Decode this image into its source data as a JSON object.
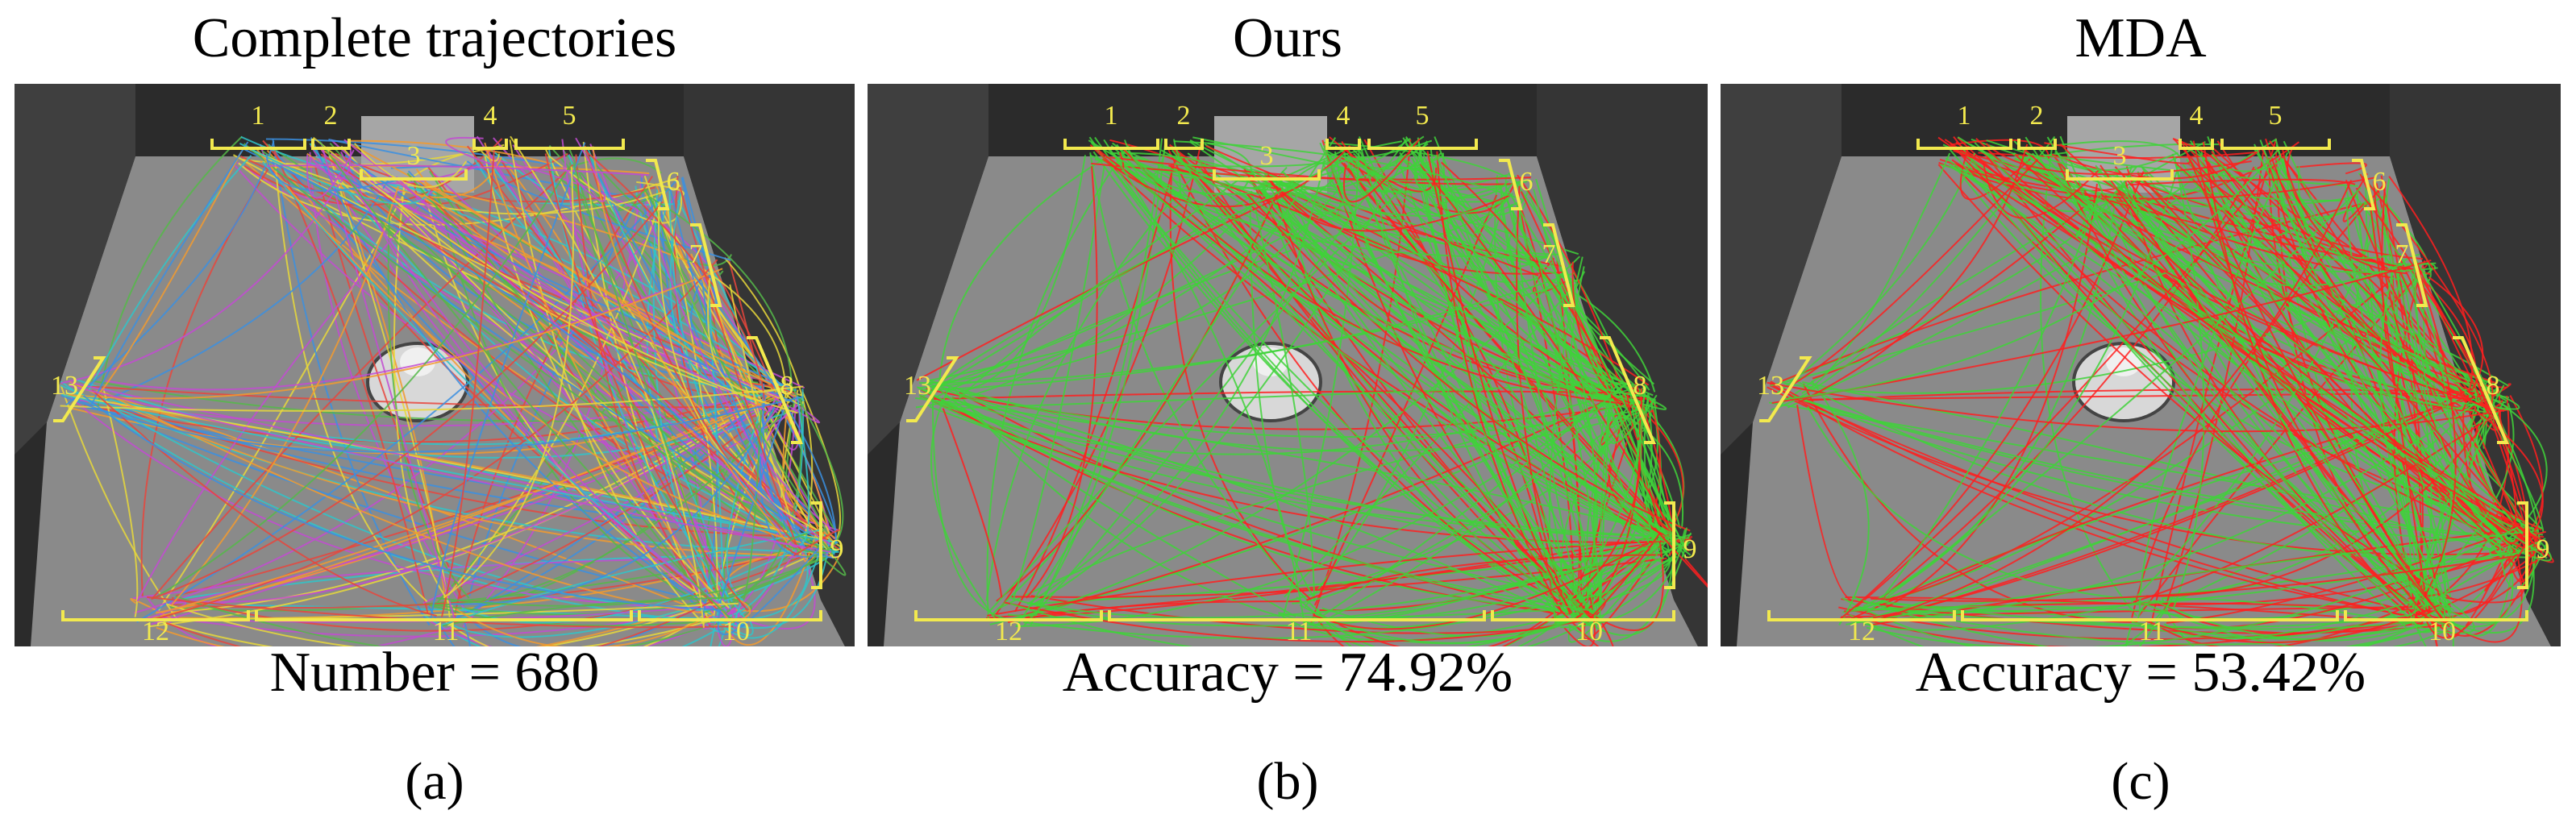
{
  "figure": {
    "region_color": "#f2e94e",
    "panels": [
      {
        "id": "a",
        "title": "Complete trajectories",
        "stat": "Number = 680",
        "label": "(a)",
        "trajectory_style": "multicolor"
      },
      {
        "id": "b",
        "title": "Ours",
        "stat": "Accuracy = 74.92%",
        "label": "(b)",
        "trajectory_style": "green-red",
        "correct_color": "#3fd23a",
        "error_color": "#ff1e1e",
        "accuracy": 0.7492
      },
      {
        "id": "c",
        "title": "MDA",
        "stat": "Accuracy = 53.42%",
        "label": "(c)",
        "trajectory_style": "green-red",
        "correct_color": "#3fd23a",
        "error_color": "#ff1e1e",
        "accuracy": 0.5342
      }
    ],
    "region_labels": [
      "1",
      "2",
      "3",
      "4",
      "5",
      "6",
      "7",
      "8",
      "9",
      "10",
      "11",
      "12",
      "13"
    ],
    "multicolor_palette": [
      "#e8453c",
      "#f29a2e",
      "#3b8fe0",
      "#55b849",
      "#c24bd1",
      "#e8d83a",
      "#2fc4c9"
    ]
  }
}
